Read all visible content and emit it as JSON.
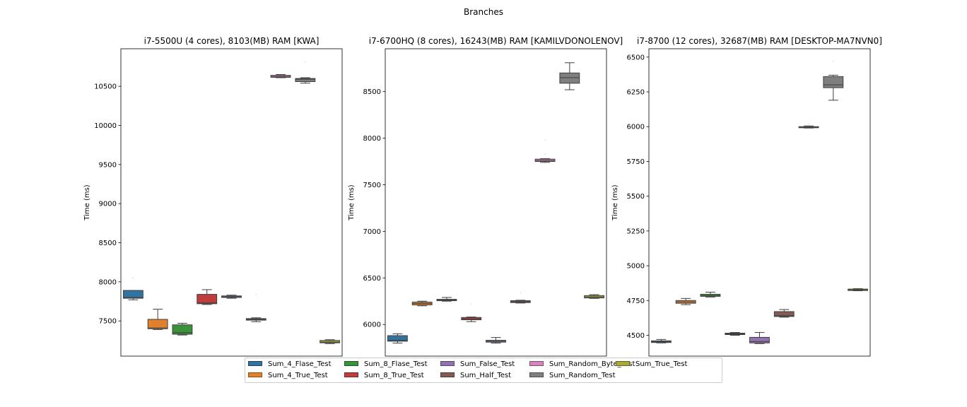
{
  "figure_title": "Branches",
  "series_colors": {
    "Sum_4_Flase_Test": "#3274a1",
    "Sum_4_True_Test": "#e1812c",
    "Sum_8_Flase_Test": "#3a923a",
    "Sum_8_True_Test": "#c03d3e",
    "Sum_False_Test": "#9372b2",
    "Sum_Half_Test": "#845b53",
    "Sum_Random_Byte_Test": "#d684bd",
    "Sum_Random_Test": "#7f7f7f",
    "Sum_True_Test": "#a9aa35"
  },
  "legend": {
    "entries": [
      "Sum_4_Flase_Test",
      "Sum_4_True_Test",
      "Sum_8_Flase_Test",
      "Sum_8_True_Test",
      "Sum_False_Test",
      "Sum_Half_Test",
      "Sum_Random_Byte_Test",
      "Sum_Random_Test",
      "Sum_True_Test"
    ]
  },
  "chart_data": [
    {
      "type": "box",
      "title": "i7-5500U (4 cores), 8103(MB) RAM [KWA]",
      "xlabel": "",
      "ylabel": "Time (ms)",
      "ylim": [
        7050,
        10980
      ],
      "yticks": [
        7500,
        8000,
        8500,
        9000,
        9500,
        10000,
        10500
      ],
      "boxes": [
        {
          "series": "Sum_4_Flase_Test",
          "whislo": 7770,
          "q1": 7790,
          "med": 7800,
          "q3": 7890,
          "whishi": 7890,
          "fliers": [
            8050
          ]
        },
        {
          "series": "Sum_4_True_Test",
          "whislo": 7390,
          "q1": 7400,
          "med": 7410,
          "q3": 7520,
          "whishi": 7650,
          "fliers": [
            7700
          ]
        },
        {
          "series": "Sum_8_Flase_Test",
          "whislo": 7320,
          "q1": 7330,
          "med": 7350,
          "q3": 7450,
          "whishi": 7470,
          "fliers": []
        },
        {
          "series": "Sum_8_True_Test",
          "whislo": 7710,
          "q1": 7720,
          "med": 7730,
          "q3": 7840,
          "whishi": 7900,
          "fliers": []
        },
        {
          "series": "Sum_False_Test",
          "whislo": 7790,
          "q1": 7800,
          "med": 7810,
          "q3": 7820,
          "whishi": 7830,
          "fliers": []
        },
        {
          "series": "Sum_Half_Test",
          "whislo": 7490,
          "q1": 7510,
          "med": 7520,
          "q3": 7530,
          "whishi": 7540,
          "fliers": [
            7840
          ]
        },
        {
          "series": "Sum_Random_Byte_Test",
          "whislo": 10610,
          "q1": 10615,
          "med": 10625,
          "q3": 10640,
          "whishi": 10650,
          "fliers": []
        },
        {
          "series": "Sum_Random_Test",
          "whislo": 10540,
          "q1": 10560,
          "med": 10590,
          "q3": 10600,
          "whishi": 10610,
          "fliers": [
            10810
          ]
        },
        {
          "series": "Sum_True_Test",
          "whislo": 7210,
          "q1": 7220,
          "med": 7230,
          "q3": 7250,
          "whishi": 7260,
          "fliers": []
        }
      ]
    },
    {
      "type": "box",
      "title": "i7-6700HQ (8 cores), 16243(MB) RAM [KAMILVDONOLENOV]",
      "xlabel": "",
      "ylabel": "Time (ms)",
      "ylim": [
        5660,
        8960
      ],
      "yticks": [
        6000,
        6500,
        7000,
        7500,
        8000,
        8500
      ],
      "boxes": [
        {
          "series": "Sum_4_Flase_Test",
          "whislo": 5800,
          "q1": 5820,
          "med": 5830,
          "q3": 5880,
          "whishi": 5900,
          "fliers": []
        },
        {
          "series": "Sum_4_True_Test",
          "whislo": 6200,
          "q1": 6210,
          "med": 6225,
          "q3": 6240,
          "whishi": 6250,
          "fliers": []
        },
        {
          "series": "Sum_8_Flase_Test",
          "whislo": 6250,
          "q1": 6255,
          "med": 6262,
          "q3": 6270,
          "whishi": 6290,
          "fliers": []
        },
        {
          "series": "Sum_8_True_Test",
          "whislo": 6030,
          "q1": 6050,
          "med": 6060,
          "q3": 6075,
          "whishi": 6080,
          "fliers": [
            6220
          ]
        },
        {
          "series": "Sum_False_Test",
          "whislo": 5800,
          "q1": 5810,
          "med": 5820,
          "q3": 5830,
          "whishi": 5860,
          "fliers": []
        },
        {
          "series": "Sum_Half_Test",
          "whislo": 6230,
          "q1": 6235,
          "med": 6245,
          "q3": 6255,
          "whishi": 6260,
          "fliers": [
            6340
          ]
        },
        {
          "series": "Sum_Random_Byte_Test",
          "whislo": 7740,
          "q1": 7750,
          "med": 7760,
          "q3": 7775,
          "whishi": 7780,
          "fliers": [
            7830,
            7980
          ]
        },
        {
          "series": "Sum_Random_Test",
          "whislo": 8520,
          "q1": 8590,
          "med": 8650,
          "q3": 8700,
          "whishi": 8810,
          "fliers": []
        },
        {
          "series": "Sum_True_Test",
          "whislo": 6280,
          "q1": 6285,
          "med": 6295,
          "q3": 6310,
          "whishi": 6320,
          "fliers": []
        }
      ]
    },
    {
      "type": "box",
      "title": "i7-8700 (12 cores), 32687(MB) RAM [DESKTOP-MA7NVN0]",
      "xlabel": "",
      "ylabel": "Time (ms)",
      "ylim": [
        4350,
        6560
      ],
      "yticks": [
        4500,
        4750,
        5000,
        5250,
        5500,
        5750,
        6000,
        6250,
        6500
      ],
      "boxes": [
        {
          "series": "Sum_4_Flase_Test",
          "whislo": 4445,
          "q1": 4448,
          "med": 4455,
          "q3": 4460,
          "whishi": 4470,
          "fliers": []
        },
        {
          "series": "Sum_4_True_Test",
          "whislo": 4720,
          "q1": 4730,
          "med": 4740,
          "q3": 4750,
          "whishi": 4765,
          "fliers": []
        },
        {
          "series": "Sum_8_Flase_Test",
          "whislo": 4775,
          "q1": 4780,
          "med": 4785,
          "q3": 4795,
          "whishi": 4810,
          "fliers": []
        },
        {
          "series": "Sum_8_True_Test",
          "whislo": 4500,
          "q1": 4505,
          "med": 4510,
          "q3": 4515,
          "whishi": 4520,
          "fliers": []
        },
        {
          "series": "Sum_False_Test",
          "whislo": 4440,
          "q1": 4445,
          "med": 4455,
          "q3": 4485,
          "whishi": 4520,
          "fliers": []
        },
        {
          "series": "Sum_Half_Test",
          "whislo": 4630,
          "q1": 4635,
          "med": 4640,
          "q3": 4670,
          "whishi": 4685,
          "fliers": []
        },
        {
          "series": "Sum_Random_Byte_Test",
          "whislo": 5990,
          "q1": 5992,
          "med": 5995,
          "q3": 6000,
          "whishi": 6005,
          "fliers": [
            6020
          ]
        },
        {
          "series": "Sum_Random_Test",
          "whislo": 6190,
          "q1": 6280,
          "med": 6300,
          "q3": 6360,
          "whishi": 6370,
          "fliers": [
            6470
          ]
        },
        {
          "series": "Sum_True_Test",
          "whislo": 4820,
          "q1": 4822,
          "med": 4826,
          "q3": 4832,
          "whishi": 4835,
          "fliers": []
        }
      ]
    }
  ]
}
